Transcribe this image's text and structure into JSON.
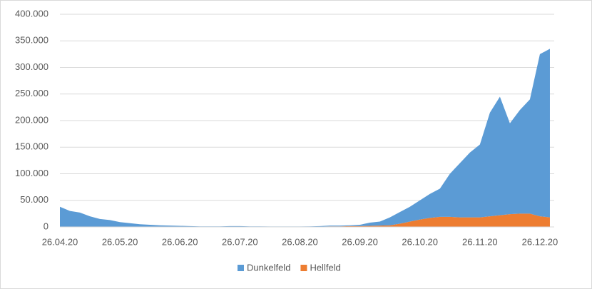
{
  "chart_data": {
    "type": "stacked_area",
    "categories": [
      "26.04.20",
      null,
      null,
      null,
      null,
      null,
      "26.05.20",
      null,
      null,
      null,
      null,
      null,
      "26.06.20",
      null,
      null,
      null,
      null,
      null,
      "26.07.20",
      null,
      null,
      null,
      null,
      null,
      "26.08.20",
      null,
      null,
      null,
      null,
      null,
      "26.09.20",
      null,
      null,
      null,
      null,
      null,
      "26.10.20",
      null,
      null,
      null,
      null,
      null,
      "26.11.20",
      null,
      null,
      null,
      null,
      null,
      "26.12.20",
      null
    ],
    "series": [
      {
        "name": "Dunkelfeld",
        "color": "#5b9bd5",
        "values": [
          38000,
          30000,
          27000,
          20000,
          15000,
          13000,
          9000,
          7000,
          5000,
          4000,
          3000,
          2500,
          2000,
          1500,
          1000,
          1000,
          1000,
          1500,
          1500,
          1000,
          1000,
          800,
          800,
          800,
          800,
          1000,
          1000,
          1500,
          1500,
          1500,
          2500,
          6000,
          7500,
          15000,
          22000,
          28000,
          36000,
          45000,
          53000,
          81000,
          102000,
          122000,
          137000,
          195000,
          223000,
          171000,
          195000,
          215000,
          305000,
          317000
        ]
      },
      {
        "name": "Hellfeld",
        "color": "#ed7d31",
        "values": [
          0,
          0,
          0,
          0,
          0,
          0,
          0,
          0,
          0,
          0,
          0,
          0,
          0,
          0,
          0,
          0,
          0,
          0,
          0,
          0,
          0,
          0,
          0,
          0,
          0,
          0,
          500,
          1000,
          1000,
          1500,
          1500,
          2000,
          2500,
          3000,
          6000,
          10000,
          14000,
          17000,
          19000,
          19000,
          18000,
          18000,
          18000,
          20000,
          22000,
          24000,
          25000,
          25000,
          20000,
          18000
        ]
      }
    ],
    "ylim": [
      0,
      400000
    ],
    "yticks": [
      0,
      {
        "value": 50000,
        "label": "50.000"
      },
      {
        "value": 100000,
        "label": "100.000"
      },
      {
        "value": 150000,
        "label": "150.000"
      },
      {
        "value": 200000,
        "label": "200.000"
      },
      {
        "value": 250000,
        "label": "250.000"
      },
      {
        "value": 300000,
        "label": "300.000"
      },
      {
        "value": 350000,
        "label": "350.000"
      },
      {
        "value": 400000,
        "label": "400.000"
      }
    ],
    "grid": true,
    "legend": "bottom"
  }
}
